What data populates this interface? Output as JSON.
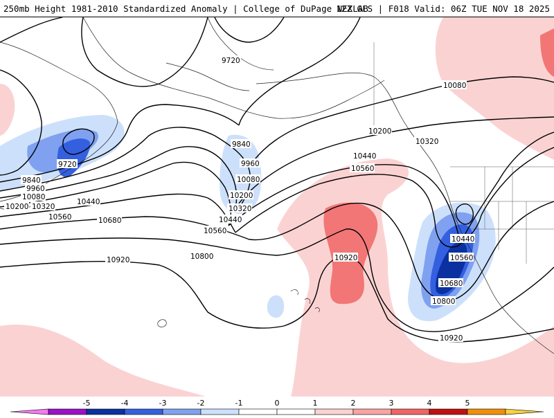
{
  "header": {
    "title_left": "250mb Height 1981-2010 Standardized Anomaly | College of DuPage NEXLAB",
    "title_right": "12Z GFS | F018 Valid: 06Z TUE NOV 18 2025"
  },
  "contour_labels": [
    "9720",
    "9720",
    "9840",
    "9840",
    "9960",
    "9960",
    "10080",
    "10080",
    "10080",
    "10200",
    "10200",
    "10200",
    "10320",
    "10320",
    "10320",
    "10440",
    "10440",
    "10440",
    "10440",
    "10560",
    "10560",
    "10560",
    "10560",
    "10680",
    "10680",
    "10800",
    "10800",
    "10920",
    "10920",
    "10920"
  ],
  "colorbar": {
    "tick_labels": [
      "-5",
      "-4",
      "-3",
      "-2",
      "-1",
      "0",
      "1",
      "2",
      "3",
      "4",
      "5"
    ],
    "colors": [
      "#f37af0",
      "#9b10c8",
      "#0b30a0",
      "#3460e0",
      "#7fa1f0",
      "#cde0fb",
      "#ffffff",
      "#ffffff",
      "#fbd2d2",
      "#f8a4a4",
      "#f06464",
      "#c01010",
      "#f09008",
      "#f8d040"
    ]
  }
}
